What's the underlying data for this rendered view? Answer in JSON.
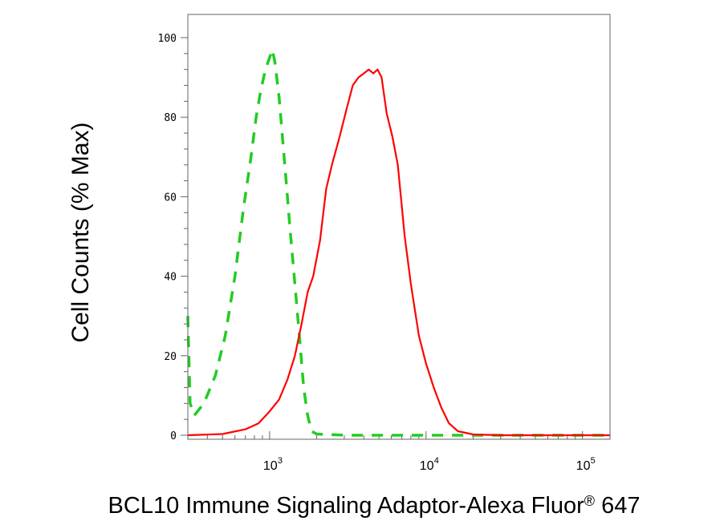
{
  "chart_data": {
    "type": "line",
    "xlabel": "BCL10 Immune Signaling Adaptor-Alexa Fluor",
    "xlabel_mark": "®",
    "xlabel_suffix": " 647",
    "ylabel": "Cell Counts (% Max)",
    "x_scale": "log",
    "xlim": [
      300,
      150000
    ],
    "ylim": [
      0,
      100
    ],
    "y_ticks": [
      "0",
      "20",
      "40",
      "60",
      "80",
      "100"
    ],
    "x_ticks": [
      {
        "base": "10",
        "exp": "3",
        "value": 1000
      },
      {
        "base": "10",
        "exp": "4",
        "value": 10000
      },
      {
        "base": "10",
        "exp": "5",
        "value": 100000
      }
    ],
    "grid": false,
    "series": [
      {
        "color": "#22cc22",
        "style": "dashed",
        "points": [
          [
            300,
            30
          ],
          [
            310,
            8
          ],
          [
            330,
            5
          ],
          [
            380,
            8
          ],
          [
            450,
            15
          ],
          [
            520,
            25
          ],
          [
            600,
            40
          ],
          [
            680,
            57
          ],
          [
            760,
            70
          ],
          [
            820,
            80
          ],
          [
            880,
            87
          ],
          [
            940,
            92
          ],
          [
            1000,
            95
          ],
          [
            1040,
            97
          ],
          [
            1080,
            94
          ],
          [
            1150,
            85
          ],
          [
            1250,
            68
          ],
          [
            1350,
            52
          ],
          [
            1450,
            38
          ],
          [
            1550,
            25
          ],
          [
            1650,
            12
          ],
          [
            1750,
            5
          ],
          [
            1850,
            1
          ],
          [
            2000,
            0.3
          ],
          [
            3000,
            0
          ],
          [
            10000,
            0
          ],
          [
            150000,
            0
          ]
        ]
      },
      {
        "color": "#ff0000",
        "style": "solid",
        "points": [
          [
            300,
            0
          ],
          [
            500,
            0.3
          ],
          [
            700,
            1.5
          ],
          [
            850,
            3
          ],
          [
            1000,
            6
          ],
          [
            1150,
            9
          ],
          [
            1300,
            14
          ],
          [
            1450,
            20
          ],
          [
            1600,
            28
          ],
          [
            1750,
            36
          ],
          [
            1900,
            40
          ],
          [
            2100,
            49
          ],
          [
            2300,
            62
          ],
          [
            2500,
            68
          ],
          [
            2800,
            75
          ],
          [
            3100,
            82
          ],
          [
            3400,
            88
          ],
          [
            3700,
            90
          ],
          [
            4000,
            91
          ],
          [
            4300,
            92
          ],
          [
            4600,
            91
          ],
          [
            4900,
            92
          ],
          [
            5200,
            90
          ],
          [
            5600,
            81
          ],
          [
            6100,
            75
          ],
          [
            6600,
            68
          ],
          [
            7300,
            50
          ],
          [
            8000,
            38
          ],
          [
            9000,
            25
          ],
          [
            10000,
            18
          ],
          [
            11200,
            12
          ],
          [
            12500,
            7
          ],
          [
            14000,
            3
          ],
          [
            16000,
            1
          ],
          [
            20000,
            0.2
          ],
          [
            30000,
            0
          ],
          [
            150000,
            0
          ]
        ]
      }
    ]
  },
  "colors": {
    "axis": "#666666",
    "background": "#ffffff"
  }
}
